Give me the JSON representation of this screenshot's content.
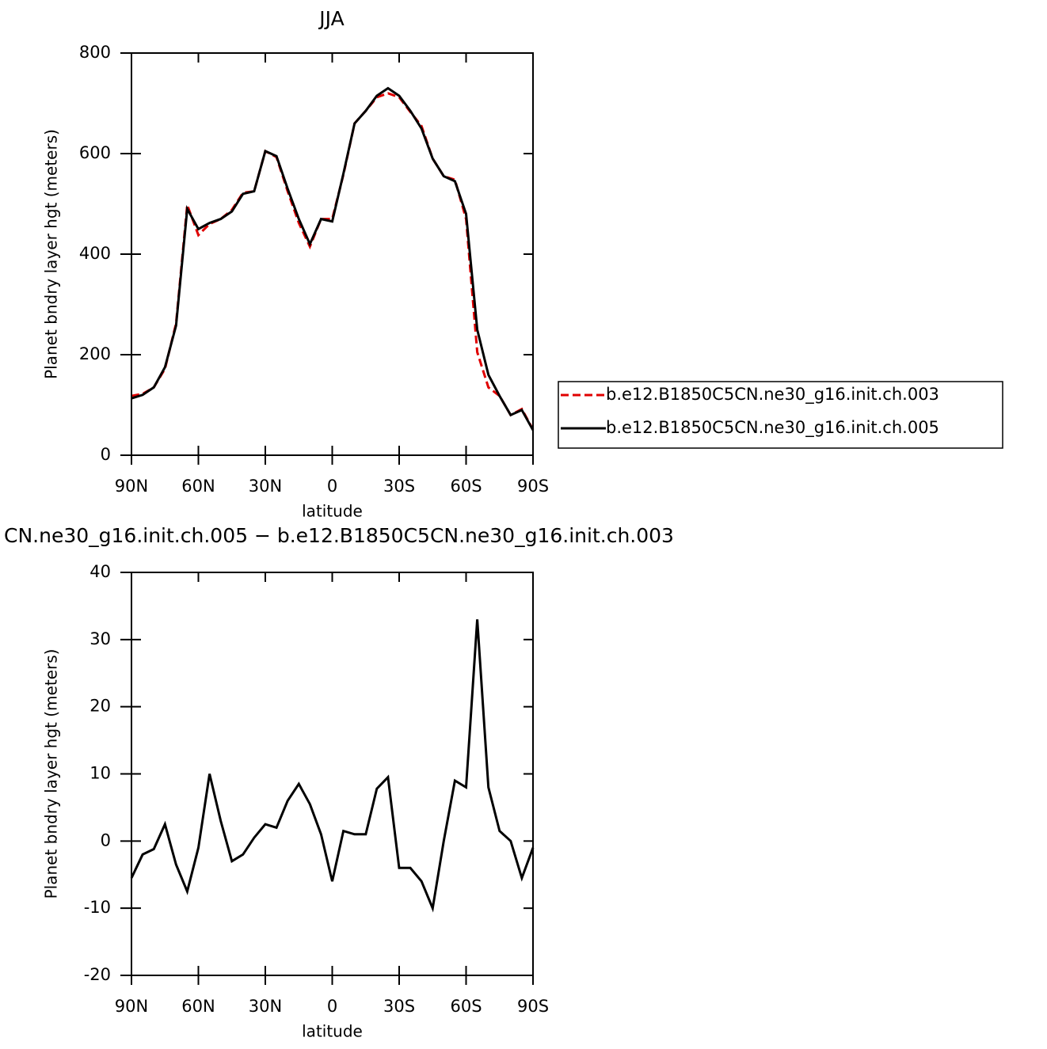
{
  "chart_data": [
    {
      "type": "line",
      "title": "JJA",
      "xlabel": "latitude",
      "ylabel": "Planet bndry layer hgt (meters)",
      "x": [
        90,
        85,
        80,
        75,
        70,
        65,
        60,
        55,
        50,
        45,
        40,
        35,
        30,
        25,
        20,
        15,
        10,
        5,
        0,
        -5,
        -10,
        -15,
        -20,
        -25,
        -30,
        -35,
        -40,
        -45,
        -50,
        -55,
        -60,
        -65,
        -70,
        -75,
        -80,
        -85,
        -90
      ],
      "series": [
        {
          "name": "b.e12.B1850C5CN.ne30_g16.init.ch.003",
          "color": "#e00000",
          "dash": true,
          "values": [
            118,
            122,
            135,
            172,
            262,
            498,
            438,
            460,
            470,
            488,
            522,
            525,
            605,
            593,
            525,
            462,
            415,
            470,
            470,
            558,
            660,
            685,
            712,
            720,
            712,
            683,
            655,
            590,
            555,
            548,
            470,
            205,
            135,
            118,
            80,
            92,
            51
          ]
        },
        {
          "name": "b.e12.B1850C5CN.ne30_g16.init.ch.005",
          "color": "#000000",
          "dash": false,
          "values": [
            113,
            120,
            135,
            175,
            258,
            490,
            450,
            462,
            470,
            485,
            520,
            525,
            605,
            595,
            530,
            470,
            420,
            470,
            465,
            560,
            660,
            685,
            715,
            730,
            715,
            685,
            650,
            590,
            555,
            545,
            480,
            250,
            160,
            118,
            80,
            90,
            50
          ]
        }
      ],
      "xlim": [
        90,
        -90
      ],
      "xticks": [
        {
          "value": 90,
          "label": "90N"
        },
        {
          "value": 60,
          "label": "60N"
        },
        {
          "value": 30,
          "label": "30N"
        },
        0,
        {
          "value": -30,
          "label": "30S"
        },
        {
          "value": -60,
          "label": "60S"
        },
        {
          "value": -90,
          "label": "90S"
        }
      ],
      "ylim": [
        0,
        800
      ],
      "yticks": [
        0,
        200,
        400,
        600,
        800
      ],
      "legend": "right"
    },
    {
      "type": "line",
      "title": "CN.ne30_g16.init.ch.005 − b.e12.B1850C5CN.ne30_g16.init.ch.003",
      "xlabel": "latitude",
      "ylabel": "Planet bndry layer hgt (meters)",
      "x": [
        90,
        85,
        80,
        75,
        70,
        65,
        60,
        55,
        50,
        45,
        40,
        35,
        30,
        25,
        20,
        15,
        10,
        5,
        0,
        -5,
        -10,
        -15,
        -20,
        -25,
        -30,
        -35,
        -40,
        -45,
        -50,
        -55,
        -60,
        -65,
        -70,
        -75,
        -80,
        -85,
        -90
      ],
      "values": [
        -5.5,
        -2,
        -1.2,
        2.5,
        -3.5,
        -7.5,
        -1,
        10,
        3,
        -3,
        -2,
        0.5,
        2.5,
        2,
        6,
        8.5,
        5.5,
        1,
        -6,
        1.5,
        1,
        1,
        7.8,
        9.5,
        -4,
        -4,
        -6,
        -10,
        0,
        9,
        8,
        33,
        8,
        1.5,
        0,
        -5.5,
        -1
      ],
      "color": "#000000",
      "xlim": [
        90,
        -90
      ],
      "xticks": [
        {
          "value": 90,
          "label": "90N"
        },
        {
          "value": 60,
          "label": "60N"
        },
        {
          "value": 30,
          "label": "30N"
        },
        0,
        {
          "value": -30,
          "label": "30S"
        },
        {
          "value": -60,
          "label": "60S"
        },
        {
          "value": -90,
          "label": "90S"
        }
      ],
      "ylim": [
        -20,
        40
      ],
      "yticks": [
        -20,
        -10,
        0,
        10,
        20,
        30,
        40
      ]
    }
  ]
}
